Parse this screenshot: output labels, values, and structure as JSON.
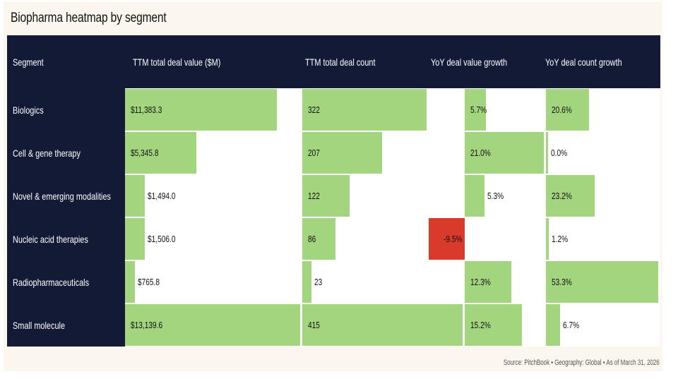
{
  "title": "Biopharma heatmap by segment",
  "source_note": "Source: PitchBook  •  Geography: Global  •  As of March 31, 2026",
  "colors": {
    "header_bg": "#121a36",
    "positive": "#a3d57f",
    "negative": "#d83a2b"
  },
  "chart_data": {
    "type": "table",
    "columns": [
      "Segment",
      "TTM total deal value ($M)",
      "TTM total deal count",
      "YoY deal value growth",
      "YoY deal count growth"
    ],
    "rows": [
      {
        "segment": "Biologics",
        "deal_value": 11383.3,
        "deal_value_label": "$11,383.3",
        "deal_count": 322,
        "deal_count_label": "322",
        "value_growth": 5.7,
        "value_growth_label": "5.7%",
        "count_growth": 20.6,
        "count_growth_label": "20.6%"
      },
      {
        "segment": "Cell & gene therapy",
        "deal_value": 5345.8,
        "deal_value_label": "$5,345.8",
        "deal_count": 207,
        "deal_count_label": "207",
        "value_growth": 21.0,
        "value_growth_label": "21.0%",
        "count_growth": 0.0,
        "count_growth_label": "0.0%"
      },
      {
        "segment": "Novel & emerging modalities",
        "deal_value": 1494.0,
        "deal_value_label": "$1,494.0",
        "deal_count": 122,
        "deal_count_label": "122",
        "value_growth": 5.3,
        "value_growth_label": "5.3%",
        "count_growth": 23.2,
        "count_growth_label": "23.2%"
      },
      {
        "segment": "Nucleic acid therapies",
        "deal_value": 1506.0,
        "deal_value_label": "$1,506.0",
        "deal_count": 86,
        "deal_count_label": "86",
        "value_growth": -9.5,
        "value_growth_label": "-9.5%",
        "count_growth": 1.2,
        "count_growth_label": "1.2%"
      },
      {
        "segment": "Radiopharmaceuticals",
        "deal_value": 765.8,
        "deal_value_label": "$765.8",
        "deal_count": 23,
        "deal_count_label": "23",
        "value_growth": 12.3,
        "value_growth_label": "12.3%",
        "count_growth": 53.3,
        "count_growth_label": "53.3%"
      },
      {
        "segment": "Small molecule",
        "deal_value": 13139.6,
        "deal_value_label": "$13,139.6",
        "deal_count": 415,
        "deal_count_label": "415",
        "value_growth": 15.2,
        "value_growth_label": "15.2%",
        "count_growth": 6.7,
        "count_growth_label": "6.7%"
      }
    ]
  }
}
